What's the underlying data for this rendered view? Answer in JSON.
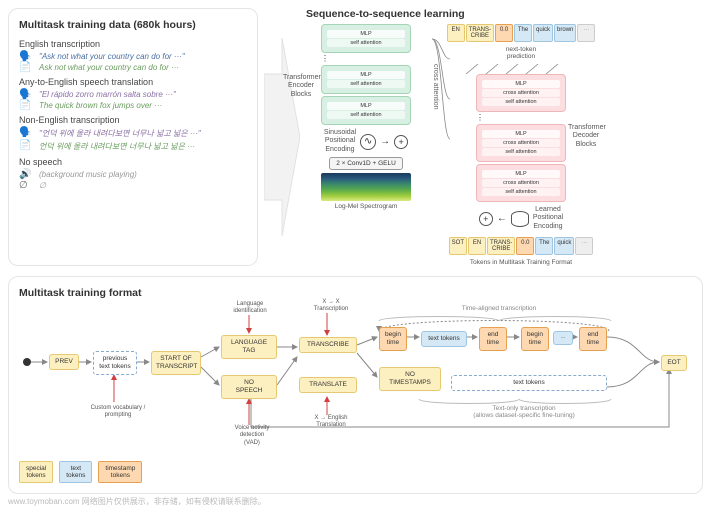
{
  "colors": {
    "blue_text": "#4a6fa5",
    "green_text": "#6a9d5f",
    "purple_text": "#8a6fa5",
    "gray_text": "#999999",
    "enc_fill": "#d8f0e3",
    "enc_border": "#a5d5b5",
    "dec_fill": "#fcdee0",
    "dec_border": "#f0b5b8",
    "tok_yellow_fill": "#fdf0c0",
    "tok_yellow_border": "#e5c870",
    "tok_blue_fill": "#d5e8f5",
    "tok_blue_border": "#a0c5e0",
    "tok_orange_fill": "#fdd8b0",
    "tok_orange_border": "#e5a050",
    "border_gray": "#e5e5e5",
    "label_gray": "#555555"
  },
  "left": {
    "title": "Multitask training data (680k hours)",
    "tasks": [
      {
        "name": "English transcription",
        "rows": [
          {
            "icon": "speech",
            "text": "\"Ask not what your country can do for ···\"",
            "cls": "c-blue"
          },
          {
            "icon": "doc",
            "text": "Ask not what your country can do for ···",
            "cls": "c-green"
          }
        ]
      },
      {
        "name": "Any-to-English speech translation",
        "rows": [
          {
            "icon": "speech",
            "text": "\"El rápido zorro marrón salta sobre ···\"",
            "cls": "c-purple"
          },
          {
            "icon": "doc",
            "text": "The quick brown fox jumps over ···",
            "cls": "c-green"
          }
        ]
      },
      {
        "name": "Non-English transcription",
        "rows": [
          {
            "icon": "speech",
            "text": "\"언덕 위에 올라 내려다보면 너무나 넓고 넓은 ···\"",
            "cls": "c-purple"
          },
          {
            "icon": "doc",
            "text": "언덕 위에 올라 내려다보면 너무나 넓고 넓은 ···",
            "cls": "c-green"
          }
        ]
      },
      {
        "name": "No speech",
        "rows": [
          {
            "icon": "audio",
            "text": "(background music playing)",
            "cls": "c-gray"
          },
          {
            "icon": "empty",
            "text": "∅",
            "cls": "c-gray"
          }
        ]
      }
    ]
  },
  "s2s": {
    "title": "Sequence-to-sequence learning",
    "encoder_label": "Transformer\nEncoder Blocks",
    "decoder_label": "Transformer\nDecoder Blocks",
    "sinusoidal_label": "Sinusoidal\nPositional\nEncoding",
    "learned_label": "Learned\nPositional\nEncoding",
    "cross_attention": "cross attention",
    "next_token": "next-token\nprediction",
    "conv_label": "2 × Conv1D + GELU",
    "spectro_label": "Log-Mel Spectrogram",
    "tokens_label": "Tokens in Multitask Training Format",
    "enc_block": {
      "mlp": "MLP",
      "sa": "self attention"
    },
    "dec_block": {
      "mlp": "MLP",
      "ca": "cross attention",
      "sa": "self attention"
    },
    "top_tokens": [
      "EN",
      "TRANS-\nCRIBE",
      "0.0",
      "The",
      "quick",
      "brown",
      "···"
    ],
    "bottom_tokens": [
      "SOT",
      "EN",
      "TRANS-\nCRIBE",
      "0.0",
      "The",
      "quick",
      "···"
    ]
  },
  "flow": {
    "title": "Multitask training format",
    "nodes": {
      "prev": "PREV",
      "prev_tokens": "previous\ntext tokens",
      "sot": "START OF\nTRANSCRIPT",
      "lang": "LANGUAGE\nTAG",
      "nospeech": "NO\nSPEECH",
      "transcribe": "TRANSCRIBE",
      "translate": "TRANSLATE",
      "begin_time": "begin\ntime",
      "text_tokens": "text tokens",
      "end_time": "end\ntime",
      "notime": "NO\nTIMESTAMPS",
      "text_tokens_big": "text tokens",
      "eot": "EOT"
    },
    "labels": {
      "custom": "Custom vocabulary /\nprompting",
      "langid": "Language\nidentification",
      "vad": "Voice activity\ndetection\n(VAD)",
      "xx": "X → X\nTranscription",
      "xe": "X → English\nTranslation",
      "timealigned": "Time-aligned transcription",
      "textonly": "Text-only transcription\n(allows dataset-specific fine-tuning)"
    },
    "legend": {
      "special": "special\ntokens",
      "text": "text\ntokens",
      "timestamp": "timestamp\ntokens"
    }
  },
  "watermark": "www.toymoban.com 网络图片仅供展示，非存储，如有侵权请联系删除。"
}
